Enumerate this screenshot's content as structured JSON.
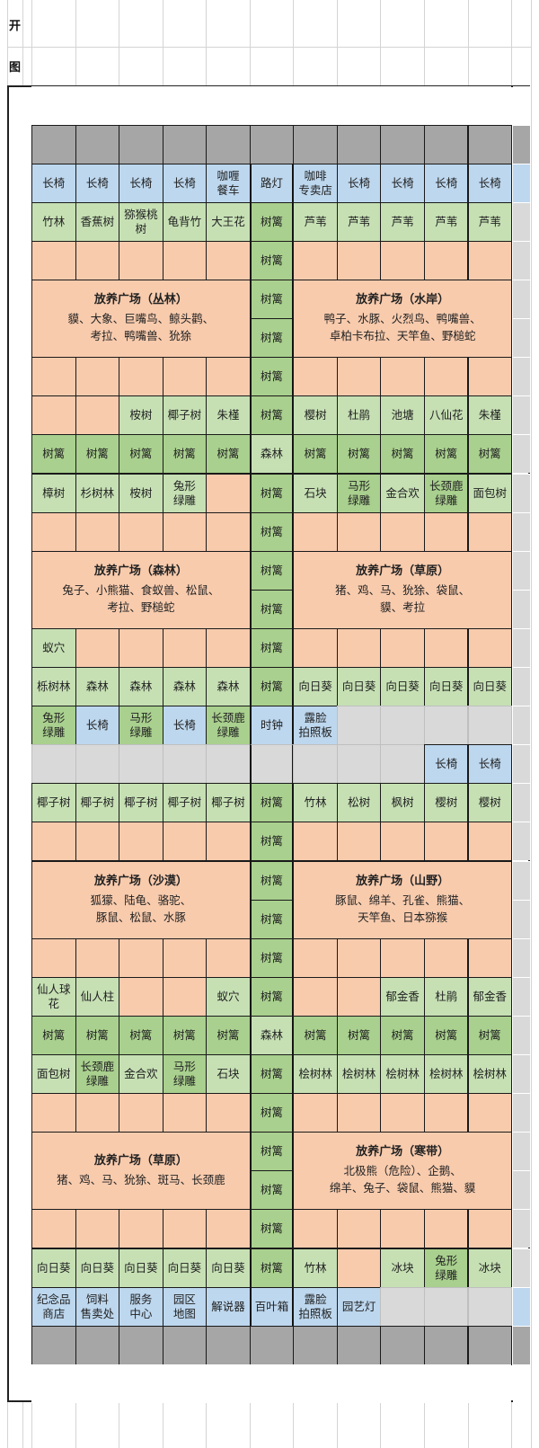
{
  "sheet": {
    "heading_1": "开",
    "heading_2": "图"
  },
  "colors": {
    "b": "#bdd7ee",
    "g": "#c6e0b4",
    "m": "#a9d08e",
    "p": "#f8cbad",
    "x": "#d9d9d9",
    "G": "#a6a6a6"
  },
  "grid": {
    "rows": [
      {
        "full": "w"
      },
      {
        "full": "G"
      },
      [
        {
          "c": "b",
          "t": "长椅"
        },
        {
          "c": "b",
          "t": "长椅"
        },
        {
          "c": "b",
          "t": "长椅"
        },
        {
          "c": "b",
          "t": "长椅"
        },
        {
          "c": "b",
          "t": "咖喱\n餐车"
        },
        {
          "c": "b",
          "t": "路灯"
        },
        {
          "c": "b",
          "t": "咖啡\n专卖店"
        },
        {
          "c": "b",
          "t": "长椅"
        },
        {
          "c": "b",
          "t": "长椅"
        },
        {
          "c": "b",
          "t": "长椅"
        },
        {
          "c": "b",
          "t": "长椅"
        }
      ],
      [
        {
          "c": "g",
          "t": "竹林"
        },
        {
          "c": "g",
          "t": "香蕉树"
        },
        {
          "c": "g",
          "t": "猕猴桃\n树"
        },
        {
          "c": "g",
          "t": "龟背竹"
        },
        {
          "c": "g",
          "t": "大王花"
        },
        {
          "c": "m",
          "t": "树篱"
        },
        {
          "c": "g",
          "t": "芦苇"
        },
        {
          "c": "g",
          "t": "芦苇"
        },
        {
          "c": "g",
          "t": "芦苇"
        },
        {
          "c": "g",
          "t": "芦苇"
        },
        {
          "c": "g",
          "t": "芦苇"
        }
      ],
      [
        {
          "c": "p"
        },
        {
          "c": "p"
        },
        {
          "c": "p"
        },
        {
          "c": "p"
        },
        {
          "c": "p"
        },
        {
          "c": "m",
          "t": "树篱"
        },
        {
          "c": "p"
        },
        {
          "c": "p"
        },
        {
          "c": "p"
        },
        {
          "c": "p"
        },
        {
          "c": "p"
        }
      ],
      [
        {
          "c": "enc",
          "title": "放养广场（丛林）",
          "animals": "貘、大象、巨嘴鸟、鲸头鹳、\n考拉、鸭嘴兽、狁狳"
        },
        null,
        null,
        null,
        null,
        {
          "c": "m",
          "t": "树篱"
        },
        {
          "c": "enc",
          "title": "放养广场（水岸）",
          "animals": "鸭子、水豚、火烈鸟、鸭嘴兽、\n卓柏卡布拉、天竿鱼、野槌蛇"
        },
        null,
        null,
        null,
        null
      ],
      [
        null,
        null,
        null,
        null,
        null,
        {
          "c": "m",
          "t": "树篱"
        },
        null,
        null,
        null,
        null,
        null
      ],
      [
        {
          "c": "p"
        },
        {
          "c": "p"
        },
        {
          "c": "p"
        },
        {
          "c": "p"
        },
        {
          "c": "p"
        },
        {
          "c": "m",
          "t": "树篱"
        },
        {
          "c": "p"
        },
        {
          "c": "p"
        },
        {
          "c": "p"
        },
        {
          "c": "p"
        },
        {
          "c": "p"
        }
      ],
      [
        {
          "c": "p"
        },
        {
          "c": "p"
        },
        {
          "c": "g",
          "t": "桉树"
        },
        {
          "c": "g",
          "t": "椰子树"
        },
        {
          "c": "g",
          "t": "朱槿"
        },
        {
          "c": "m",
          "t": "树篱"
        },
        {
          "c": "g",
          "t": "樱树"
        },
        {
          "c": "g",
          "t": "杜鹃"
        },
        {
          "c": "g",
          "t": "池塘"
        },
        {
          "c": "g",
          "t": "八仙花"
        },
        {
          "c": "g",
          "t": "朱槿"
        }
      ],
      [
        {
          "c": "m",
          "t": "树篱"
        },
        {
          "c": "m",
          "t": "树篱"
        },
        {
          "c": "m",
          "t": "树篱"
        },
        {
          "c": "m",
          "t": "树篱"
        },
        {
          "c": "m",
          "t": "树篱"
        },
        {
          "c": "g",
          "t": "森林"
        },
        {
          "c": "m",
          "t": "树篱"
        },
        {
          "c": "m",
          "t": "树篱"
        },
        {
          "c": "m",
          "t": "树篱"
        },
        {
          "c": "m",
          "t": "树篱"
        },
        {
          "c": "m",
          "t": "树篱"
        }
      ],
      [
        {
          "c": "g",
          "t": "樟树"
        },
        {
          "c": "g",
          "t": "杉树林"
        },
        {
          "c": "g",
          "t": "桉树"
        },
        {
          "c": "g",
          "t": "兔形\n绿雕"
        },
        {
          "c": "p"
        },
        {
          "c": "m",
          "t": "树篱"
        },
        {
          "c": "g",
          "t": "石块"
        },
        {
          "c": "m",
          "t": "马形\n绿雕"
        },
        {
          "c": "g",
          "t": "金合欢"
        },
        {
          "c": "m",
          "t": "长颈鹿\n绿雕"
        },
        {
          "c": "g",
          "t": "面包树"
        }
      ],
      [
        {
          "c": "p"
        },
        {
          "c": "p"
        },
        {
          "c": "p"
        },
        {
          "c": "p"
        },
        {
          "c": "p"
        },
        {
          "c": "m",
          "t": "树篱"
        },
        {
          "c": "p"
        },
        {
          "c": "p"
        },
        {
          "c": "p"
        },
        {
          "c": "p"
        },
        {
          "c": "p"
        }
      ],
      [
        {
          "c": "enc",
          "title": "放养广场（森林）",
          "animals": "兔子、小熊猫、食蚁兽、松鼠、\n考拉、野槌蛇"
        },
        null,
        null,
        null,
        null,
        {
          "c": "m",
          "t": "树篱"
        },
        {
          "c": "enc",
          "title": "放养广场（草原）",
          "animals": "猪、鸡、马、狁狳、袋鼠、\n貘、考拉"
        },
        null,
        null,
        null,
        null
      ],
      [
        null,
        null,
        null,
        null,
        null,
        {
          "c": "m",
          "t": "树篱"
        },
        null,
        null,
        null,
        null,
        null
      ],
      [
        {
          "c": "g",
          "t": "蚁穴"
        },
        {
          "c": "p"
        },
        {
          "c": "p"
        },
        {
          "c": "p"
        },
        {
          "c": "p"
        },
        {
          "c": "m",
          "t": "树篱"
        },
        {
          "c": "p"
        },
        {
          "c": "p"
        },
        {
          "c": "p"
        },
        {
          "c": "p"
        },
        {
          "c": "p"
        }
      ],
      [
        {
          "c": "g",
          "t": "栎树林"
        },
        {
          "c": "g",
          "t": "森林"
        },
        {
          "c": "g",
          "t": "森林"
        },
        {
          "c": "g",
          "t": "森林"
        },
        {
          "c": "g",
          "t": "森林"
        },
        {
          "c": "m",
          "t": "树篱"
        },
        {
          "c": "g",
          "t": "向日葵"
        },
        {
          "c": "g",
          "t": "向日葵"
        },
        {
          "c": "g",
          "t": "向日葵"
        },
        {
          "c": "g",
          "t": "向日葵"
        },
        {
          "c": "g",
          "t": "向日葵"
        }
      ],
      [
        {
          "c": "m",
          "t": "兔形\n绿雕"
        },
        {
          "c": "b",
          "t": "长椅"
        },
        {
          "c": "m",
          "t": "马形\n绿雕"
        },
        {
          "c": "b",
          "t": "长椅"
        },
        {
          "c": "m",
          "t": "长颈鹿\n绿雕"
        },
        {
          "c": "b",
          "t": "时钟"
        },
        {
          "c": "b",
          "t": "露脸\n拍照板"
        },
        {
          "c": "x"
        },
        {
          "c": "x"
        },
        {
          "c": "x"
        },
        {
          "c": "x"
        }
      ],
      [
        {
          "c": "x"
        },
        {
          "c": "x"
        },
        {
          "c": "x"
        },
        {
          "c": "x"
        },
        {
          "c": "x"
        },
        {
          "c": "x"
        },
        {
          "c": "x"
        },
        {
          "c": "x"
        },
        {
          "c": "x"
        },
        {
          "c": "b",
          "t": "长椅"
        },
        {
          "c": "b",
          "t": "长椅"
        }
      ],
      [
        {
          "c": "g",
          "t": "椰子树"
        },
        {
          "c": "g",
          "t": "椰子树"
        },
        {
          "c": "g",
          "t": "椰子树"
        },
        {
          "c": "g",
          "t": "椰子树"
        },
        {
          "c": "g",
          "t": "椰子树"
        },
        {
          "c": "m",
          "t": "树篱"
        },
        {
          "c": "g",
          "t": "竹林"
        },
        {
          "c": "g",
          "t": "松树"
        },
        {
          "c": "g",
          "t": "枫树"
        },
        {
          "c": "g",
          "t": "樱树"
        },
        {
          "c": "g",
          "t": "樱树"
        }
      ],
      [
        {
          "c": "p"
        },
        {
          "c": "p"
        },
        {
          "c": "p"
        },
        {
          "c": "p"
        },
        {
          "c": "p"
        },
        {
          "c": "m",
          "t": "树篱"
        },
        {
          "c": "p"
        },
        {
          "c": "p"
        },
        {
          "c": "p"
        },
        {
          "c": "p"
        },
        {
          "c": "p"
        }
      ],
      [
        {
          "c": "enc",
          "title": "放养广场（沙漠）",
          "animals": "狐獴、陆龟、骆驼、\n豚鼠、松鼠、水豚"
        },
        null,
        null,
        null,
        null,
        {
          "c": "m",
          "t": "树篱"
        },
        {
          "c": "enc",
          "title": "放养广场（山野）",
          "animals": "豚鼠、绵羊、孔雀、熊猫、\n天竿鱼、日本猕猴"
        },
        null,
        null,
        null,
        null
      ],
      [
        null,
        null,
        null,
        null,
        null,
        {
          "c": "m",
          "t": "树篱"
        },
        null,
        null,
        null,
        null,
        null
      ],
      [
        {
          "c": "p"
        },
        {
          "c": "p"
        },
        {
          "c": "p"
        },
        {
          "c": "p"
        },
        {
          "c": "p"
        },
        {
          "c": "m",
          "t": "树篱"
        },
        {
          "c": "p"
        },
        {
          "c": "p"
        },
        {
          "c": "p"
        },
        {
          "c": "p"
        },
        {
          "c": "p"
        }
      ],
      [
        {
          "c": "g",
          "t": "仙人球\n花"
        },
        {
          "c": "g",
          "t": "仙人柱"
        },
        {
          "c": "p"
        },
        {
          "c": "p"
        },
        {
          "c": "g",
          "t": "蚁穴"
        },
        {
          "c": "m",
          "t": "树篱"
        },
        {
          "c": "p"
        },
        {
          "c": "p"
        },
        {
          "c": "g",
          "t": "郁金香"
        },
        {
          "c": "g",
          "t": "杜鹃"
        },
        {
          "c": "g",
          "t": "郁金香"
        }
      ],
      [
        {
          "c": "m",
          "t": "树篱"
        },
        {
          "c": "m",
          "t": "树篱"
        },
        {
          "c": "m",
          "t": "树篱"
        },
        {
          "c": "m",
          "t": "树篱"
        },
        {
          "c": "m",
          "t": "树篱"
        },
        {
          "c": "g",
          "t": "森林"
        },
        {
          "c": "m",
          "t": "树篱"
        },
        {
          "c": "m",
          "t": "树篱"
        },
        {
          "c": "m",
          "t": "树篱"
        },
        {
          "c": "m",
          "t": "树篱"
        },
        {
          "c": "m",
          "t": "树篱"
        }
      ],
      [
        {
          "c": "g",
          "t": "面包树"
        },
        {
          "c": "m",
          "t": "长颈鹿\n绿雕"
        },
        {
          "c": "g",
          "t": "金合欢"
        },
        {
          "c": "m",
          "t": "马形\n绿雕"
        },
        {
          "c": "g",
          "t": "石块"
        },
        {
          "c": "m",
          "t": "树篱"
        },
        {
          "c": "g",
          "t": "桧树林"
        },
        {
          "c": "g",
          "t": "桧树林"
        },
        {
          "c": "g",
          "t": "桧树林"
        },
        {
          "c": "g",
          "t": "桧树林"
        },
        {
          "c": "g",
          "t": "桧树林"
        }
      ],
      [
        {
          "c": "p"
        },
        {
          "c": "p"
        },
        {
          "c": "p"
        },
        {
          "c": "p"
        },
        {
          "c": "p"
        },
        {
          "c": "m",
          "t": "树篱"
        },
        {
          "c": "p"
        },
        {
          "c": "p"
        },
        {
          "c": "p"
        },
        {
          "c": "p"
        },
        {
          "c": "p"
        }
      ],
      [
        {
          "c": "enc",
          "title": "放养广场（草原）",
          "animals": "猪、鸡、马、狁狳、斑马、长颈鹿"
        },
        null,
        null,
        null,
        null,
        {
          "c": "m",
          "t": "树篱"
        },
        {
          "c": "enc",
          "title": "放养广场（寒带）",
          "animals": "北极熊（危险）、企鹅、\n绵羊、兔子、袋鼠、熊猫、貘"
        },
        null,
        null,
        null,
        null
      ],
      [
        null,
        null,
        null,
        null,
        null,
        {
          "c": "m",
          "t": "树篱"
        },
        null,
        null,
        null,
        null,
        null
      ],
      [
        {
          "c": "p"
        },
        {
          "c": "p"
        },
        {
          "c": "p"
        },
        {
          "c": "p"
        },
        {
          "c": "p"
        },
        {
          "c": "m",
          "t": "树篱"
        },
        {
          "c": "p"
        },
        {
          "c": "p"
        },
        {
          "c": "p"
        },
        {
          "c": "p"
        },
        {
          "c": "p"
        }
      ],
      [
        {
          "c": "g",
          "t": "向日葵"
        },
        {
          "c": "g",
          "t": "向日葵"
        },
        {
          "c": "g",
          "t": "向日葵"
        },
        {
          "c": "g",
          "t": "向日葵"
        },
        {
          "c": "g",
          "t": "向日葵"
        },
        {
          "c": "m",
          "t": "树篱"
        },
        {
          "c": "g",
          "t": "竹林"
        },
        {
          "c": "p"
        },
        {
          "c": "g",
          "t": "冰块"
        },
        {
          "c": "m",
          "t": "兔形\n绿雕"
        },
        {
          "c": "g",
          "t": "冰块"
        }
      ],
      [
        {
          "c": "b",
          "t": "纪念品\n商店"
        },
        {
          "c": "b",
          "t": "饲料\n售卖处"
        },
        {
          "c": "b",
          "t": "服务\n中心"
        },
        {
          "c": "b",
          "t": "园区\n地图"
        },
        {
          "c": "b",
          "t": "解说器"
        },
        {
          "c": "b",
          "t": "百叶箱"
        },
        {
          "c": "b",
          "t": "露脸\n拍照板"
        },
        {
          "c": "b",
          "t": "园艺灯"
        },
        {
          "c": "x"
        },
        {
          "c": "x"
        },
        {
          "c": "x"
        }
      ],
      {
        "full": "G"
      },
      {
        "full": "w"
      }
    ]
  }
}
